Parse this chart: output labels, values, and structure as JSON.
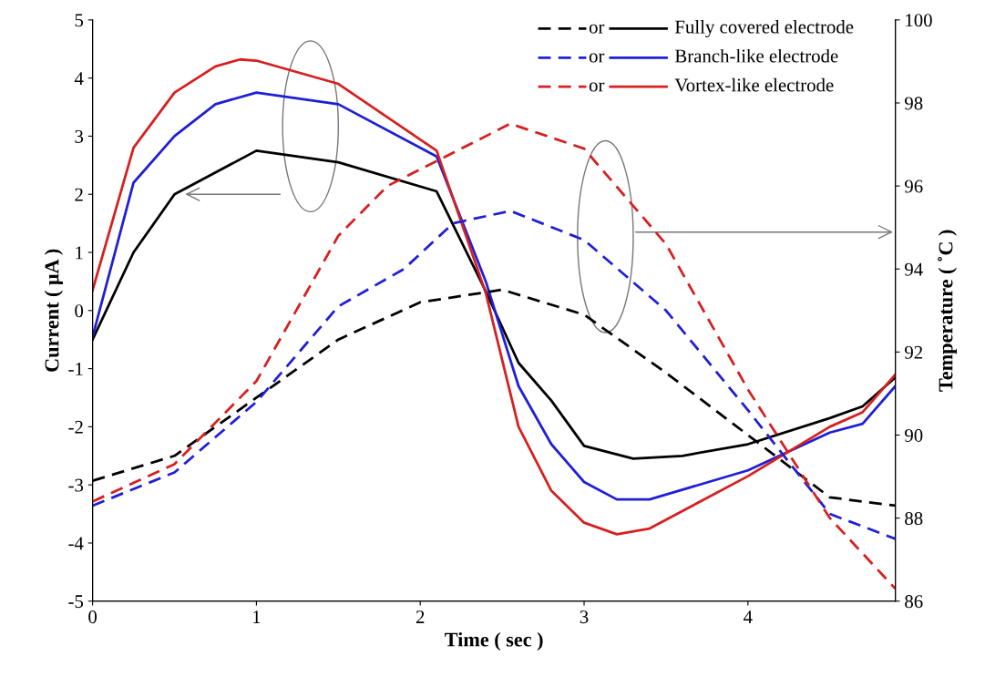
{
  "chart_data": {
    "type": "line",
    "xlabel": "Time ( sec )",
    "ylabel": "Current ( μA )",
    "y2label": "Temperature ( ˚C )",
    "xlim": [
      0,
      4.9
    ],
    "xticks": [
      0,
      1,
      2,
      3,
      4
    ],
    "ylim": [
      -5,
      5
    ],
    "yticks": [
      -5,
      -4,
      -3,
      -2,
      -1,
      0,
      1,
      2,
      3,
      4,
      5
    ],
    "y2lim": [
      86,
      100
    ],
    "y2ticks": [
      86,
      88,
      90,
      92,
      94,
      96,
      98,
      100
    ],
    "grid": false,
    "legend": "top right",
    "marker": "none",
    "annotations": [
      "or",
      "or",
      "or"
    ],
    "series": [
      {
        "color": "#000000",
        "axis": "y2",
        "line_style": "dashed",
        "x": [
          0,
          0.5,
          1.0,
          1.5,
          2.0,
          2.5,
          3.0,
          3.5,
          4.0,
          4.3,
          4.5,
          4.9
        ],
        "values": [
          88.9,
          89.5,
          90.9,
          92.3,
          93.2,
          93.5,
          92.9,
          91.5,
          90.0,
          89.1,
          88.5,
          88.3
        ]
      },
      {
        "name": "Fully covered electrode",
        "color": "#000000",
        "line_style": "solid",
        "x": [
          0,
          0.25,
          0.5,
          1.0,
          1.5,
          2.1,
          2.4,
          2.6,
          2.8,
          3.0,
          3.3,
          3.6,
          4.0,
          4.5,
          4.7,
          4.9
        ],
        "values": [
          -0.5,
          1.0,
          2.0,
          2.75,
          2.55,
          2.05,
          0.33,
          -0.9,
          -1.55,
          -2.33,
          -2.55,
          -2.5,
          -2.3,
          -1.85,
          -1.65,
          -1.15
        ]
      },
      {
        "color": "#1f1fd6",
        "axis": "y2",
        "line_style": "dashed",
        "x": [
          0,
          0.5,
          1.0,
          1.5,
          1.9,
          2.2,
          2.55,
          3.0,
          3.5,
          4.0,
          4.5,
          4.9
        ],
        "values": [
          88.3,
          89.1,
          90.8,
          93.1,
          94.0,
          95.1,
          95.4,
          94.7,
          93.0,
          90.6,
          88.1,
          87.5
        ]
      },
      {
        "name": "Branch-like electrode",
        "color": "#1f1fd6",
        "line_style": "solid",
        "x": [
          0,
          0.25,
          0.5,
          0.75,
          1.0,
          1.5,
          2.1,
          2.4,
          2.6,
          2.8,
          3.0,
          3.2,
          3.4,
          4.0,
          4.5,
          4.7,
          4.9
        ],
        "values": [
          -0.45,
          2.2,
          3.0,
          3.55,
          3.75,
          3.55,
          2.65,
          0.5,
          -1.3,
          -2.3,
          -2.95,
          -3.25,
          -3.25,
          -2.75,
          -2.1,
          -1.95,
          -1.3
        ]
      },
      {
        "color": "#d62020",
        "axis": "y2",
        "line_style": "dashed",
        "x": [
          0,
          0.5,
          1.0,
          1.5,
          1.8,
          2.1,
          2.55,
          3.0,
          3.5,
          4.0,
          4.5,
          4.9
        ],
        "values": [
          88.4,
          89.3,
          91.3,
          94.8,
          96.0,
          96.6,
          97.5,
          96.9,
          94.6,
          91.1,
          88.0,
          86.3
        ]
      },
      {
        "name": "Vortex-like electrode",
        "color": "#d62020",
        "line_style": "solid",
        "x": [
          0,
          0.25,
          0.5,
          0.75,
          0.9,
          1.0,
          1.5,
          2.1,
          2.4,
          2.6,
          2.8,
          3.0,
          3.2,
          3.4,
          4.0,
          4.5,
          4.7,
          4.9
        ],
        "values": [
          0.35,
          2.8,
          3.75,
          4.2,
          4.32,
          4.3,
          3.9,
          2.75,
          0.3,
          -2.0,
          -3.1,
          -3.65,
          -3.85,
          -3.75,
          -2.85,
          -2.0,
          -1.75,
          -1.1
        ]
      }
    ]
  }
}
